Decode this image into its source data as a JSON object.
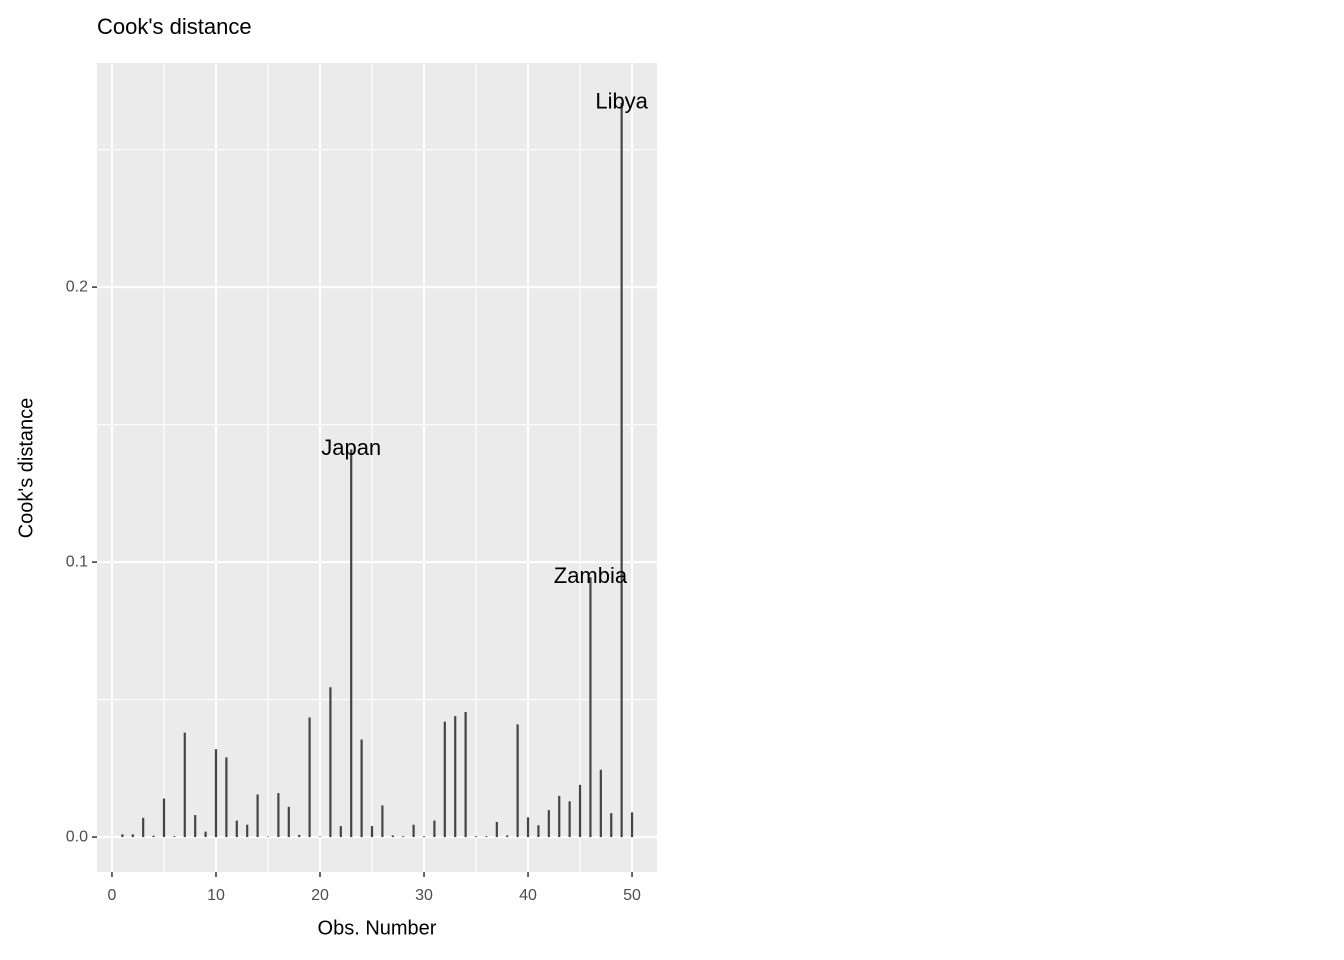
{
  "chart_data": {
    "type": "bar",
    "title": "Cook's distance",
    "x_label": "Obs. Number",
    "y_label": "Cook's distance",
    "x": [
      1,
      2,
      3,
      4,
      5,
      6,
      7,
      8,
      9,
      10,
      11,
      12,
      13,
      14,
      15,
      16,
      17,
      18,
      19,
      20,
      21,
      22,
      23,
      24,
      25,
      26,
      27,
      28,
      29,
      30,
      31,
      32,
      33,
      34,
      35,
      36,
      37,
      38,
      39,
      40,
      41,
      42,
      43,
      44,
      45,
      46,
      47,
      48,
      49,
      50
    ],
    "values": [
      0.001,
      0.001,
      0.007,
      0.0005,
      0.014,
      0.0003,
      0.038,
      0.008,
      0.002,
      0.032,
      0.029,
      0.006,
      0.0045,
      0.0155,
      0.0002,
      0.016,
      0.011,
      0.0008,
      0.0435,
      0.0002,
      0.0545,
      0.004,
      0.141,
      0.0355,
      0.004,
      0.0115,
      0.0006,
      0.0003,
      0.0045,
      0.0003,
      0.006,
      0.042,
      0.044,
      0.0455,
      0.0003,
      0.0003,
      0.0055,
      0.0006,
      0.041,
      0.0072,
      0.0043,
      0.0098,
      0.015,
      0.013,
      0.019,
      0.0945,
      0.0245,
      0.0087,
      0.267,
      0.009
    ],
    "color": "#444444",
    "annotations": [
      {
        "x": 23,
        "text": "Japan"
      },
      {
        "x": 46,
        "text": "Zambia"
      },
      {
        "x": 49,
        "text": "Libya"
      }
    ],
    "xlim": [
      -1.44,
      52.4
    ],
    "ylim": [
      -0.0127,
      0.2815
    ],
    "xticks": [
      0,
      10,
      20,
      30,
      40,
      50
    ],
    "yticks": [
      {
        "value": 0,
        "label": "0.0"
      },
      {
        "value": 0.1,
        "label": "0.1"
      },
      {
        "value": 0.2,
        "label": "0.2"
      }
    ],
    "grid": true
  }
}
